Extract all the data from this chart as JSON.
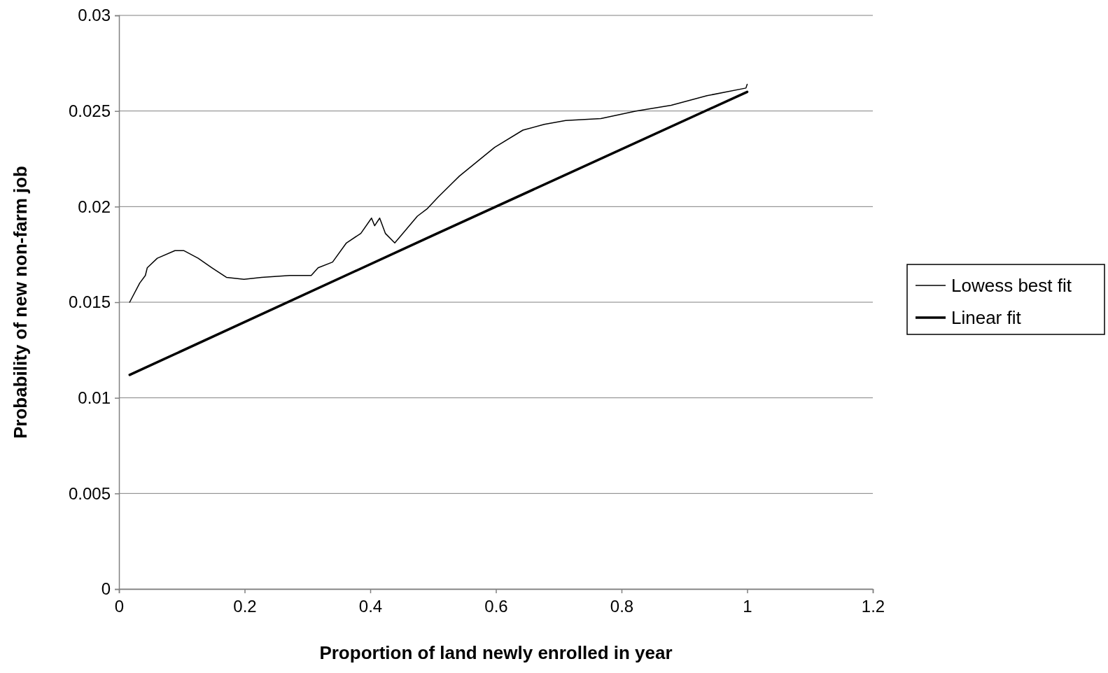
{
  "chart_data": {
    "type": "line",
    "xlabel": "Proportion of land newly enrolled in year",
    "ylabel": "Probability of new non-farm job",
    "xlim": [
      0,
      1.2
    ],
    "xticks": [
      0,
      0.2,
      0.4,
      0.6,
      0.8,
      1,
      1.2
    ],
    "ylim": [
      0,
      0.03
    ],
    "yticks": [
      0,
      0.005,
      0.01,
      0.015,
      0.02,
      0.025,
      0.03
    ],
    "grid": "y",
    "legend": "right",
    "marker": "none",
    "series": [
      {
        "name": "Lowess best fit",
        "color": "#000000",
        "line_style": "solid",
        "x": [
          0.017,
          0.033,
          0.042,
          0.045,
          0.061,
          0.089,
          0.103,
          0.126,
          0.148,
          0.171,
          0.199,
          0.227,
          0.272,
          0.306,
          0.317,
          0.34,
          0.362,
          0.385,
          0.402,
          0.407,
          0.415,
          0.424,
          0.439,
          0.452,
          0.475,
          0.491,
          0.508,
          0.542,
          0.598,
          0.643,
          0.677,
          0.711,
          0.767,
          0.823,
          0.879,
          0.936,
          0.998,
          1.0
        ],
        "values": [
          0.015,
          0.016,
          0.0164,
          0.0168,
          0.0173,
          0.0177,
          0.0177,
          0.0173,
          0.0168,
          0.0163,
          0.0162,
          0.0163,
          0.0164,
          0.0164,
          0.0168,
          0.0171,
          0.0181,
          0.0186,
          0.0194,
          0.019,
          0.0194,
          0.0186,
          0.0181,
          0.0186,
          0.0195,
          0.0199,
          0.0205,
          0.0216,
          0.0231,
          0.024,
          0.0243,
          0.0245,
          0.0246,
          0.025,
          0.0253,
          0.0258,
          0.0262,
          0.0264
        ]
      },
      {
        "name": "Linear fit",
        "color": "#000000",
        "line_style": "solid",
        "x": [
          0.017,
          0.5,
          1.0
        ],
        "values": [
          0.0112,
          0.0185,
          0.026
        ]
      }
    ]
  }
}
